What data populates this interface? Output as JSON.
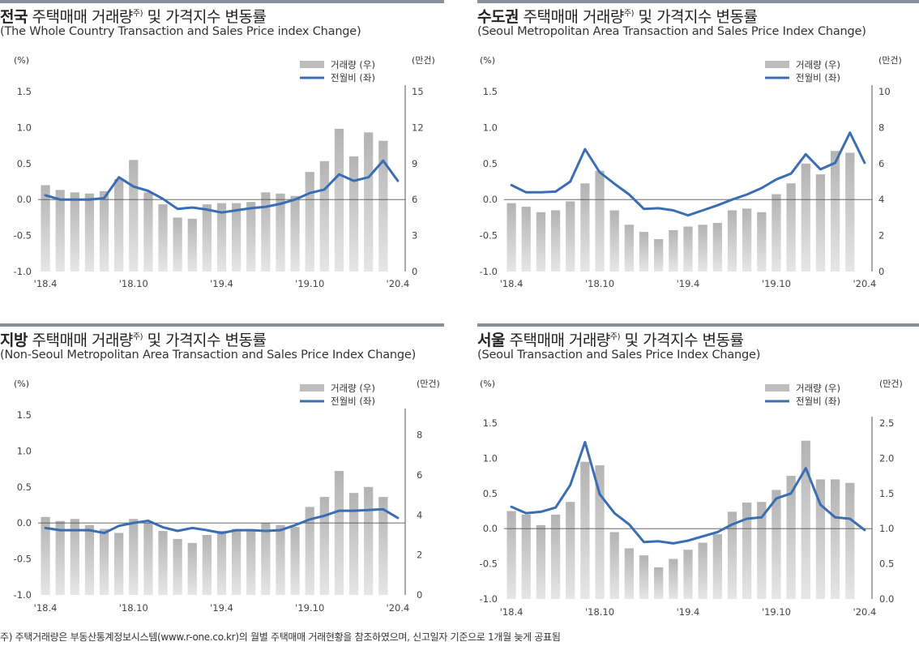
{
  "legend": {
    "bar_label": "거래량 (우)",
    "line_label": "전월비 (좌)"
  },
  "units": {
    "left": "(%)",
    "right": "(만건)"
  },
  "colors": {
    "bar": "#bdbdbd",
    "line": "#3a6db3",
    "zero": "#555555",
    "top_rule": "#8a8f99"
  },
  "footnote": "주) 주택거래량은 부동산통계정보시스템(www.r-one.co.kr)의 월별 주택매매 거래현황을 참조하였으며, 신고일자 기준으로 1개월 늦게 공표됨",
  "chart_data": [
    {
      "type": "bar+line",
      "title_bold": "전국",
      "title_rest": " 주택매매 거래량",
      "title_sup": "주)",
      "title_tail": " 및 가격지수 변동률",
      "subtitle": "(The Whole Country Transaction and Sales Price index Change)",
      "x": [
        "18.4",
        "18.5",
        "18.6",
        "18.7",
        "18.8",
        "18.9",
        "18.10",
        "18.11",
        "18.12",
        "19.1",
        "19.2",
        "19.3",
        "19.4",
        "19.5",
        "19.6",
        "19.7",
        "19.8",
        "19.9",
        "19.10",
        "19.11",
        "19.12",
        "20.1",
        "20.2",
        "20.3",
        "20.4"
      ],
      "x_tick_labels": [
        "'18.4",
        "'18.10",
        "'19.4",
        "'19.10",
        "'20.4"
      ],
      "left_ticks": [
        "1.5",
        "1.0",
        "0.5",
        "0.0",
        "-0.5",
        "-1.0"
      ],
      "right_ticks": [
        "15",
        "12",
        "9",
        "6",
        "3",
        "0"
      ],
      "ylim_left": [
        -1.0,
        1.5
      ],
      "ylim_right": [
        0,
        15
      ],
      "series": [
        {
          "name": "거래량 (우)",
          "kind": "bar",
          "axis": "right",
          "values": [
            7.2,
            6.8,
            6.6,
            6.5,
            6.7,
            7.7,
            9.3,
            6.6,
            5.6,
            4.5,
            4.4,
            5.6,
            5.7,
            5.7,
            5.8,
            6.6,
            6.5,
            6.3,
            8.3,
            9.2,
            11.9,
            9.6,
            11.6,
            10.9,
            null
          ]
        },
        {
          "name": "전월비 (좌)",
          "kind": "line",
          "axis": "left",
          "values": [
            0.06,
            0.0,
            0.0,
            0.0,
            0.02,
            0.31,
            0.18,
            0.12,
            0.01,
            -0.13,
            -0.11,
            -0.14,
            -0.18,
            -0.15,
            -0.12,
            -0.1,
            -0.06,
            0.0,
            0.09,
            0.14,
            0.35,
            0.26,
            0.31,
            0.54,
            0.26
          ]
        }
      ]
    },
    {
      "type": "bar+line",
      "title_bold": "수도권",
      "title_rest": " 주택매매 거래량",
      "title_sup": "주)",
      "title_tail": " 및 가격지수 변동률",
      "subtitle": "(Seoul Metropolitan Area Transaction and Sales Price Index Change)",
      "x": [
        "18.4",
        "18.5",
        "18.6",
        "18.7",
        "18.8",
        "18.9",
        "18.10",
        "18.11",
        "18.12",
        "19.1",
        "19.2",
        "19.3",
        "19.4",
        "19.5",
        "19.6",
        "19.7",
        "19.8",
        "19.9",
        "19.10",
        "19.11",
        "19.12",
        "20.1",
        "20.2",
        "20.3",
        "20.4"
      ],
      "x_tick_labels": [
        "'18.4",
        "'18.10",
        "'19.4",
        "'19.10",
        "'20.4"
      ],
      "left_ticks": [
        "1.5",
        "1.0",
        "0.5",
        "0.0",
        "-0.5",
        "-1.0"
      ],
      "right_ticks": [
        "10",
        "8",
        "6",
        "4",
        "2",
        "0"
      ],
      "ylim_left": [
        -1.0,
        1.5
      ],
      "ylim_right": [
        0,
        10
      ],
      "series": [
        {
          "name": "거래량 (우)",
          "kind": "bar",
          "axis": "right",
          "values": [
            3.8,
            3.6,
            3.3,
            3.4,
            3.9,
            4.9,
            5.6,
            3.4,
            2.6,
            2.2,
            1.8,
            2.3,
            2.5,
            2.6,
            2.7,
            3.4,
            3.5,
            3.3,
            4.3,
            4.9,
            6.0,
            5.4,
            6.7,
            6.6,
            null
          ]
        },
        {
          "name": "전월비 (좌)",
          "kind": "line",
          "axis": "left",
          "values": [
            0.2,
            0.1,
            0.1,
            0.11,
            0.25,
            0.7,
            0.38,
            0.22,
            0.07,
            -0.13,
            -0.12,
            -0.15,
            -0.22,
            -0.15,
            -0.08,
            0.0,
            0.07,
            0.16,
            0.28,
            0.36,
            0.63,
            0.42,
            0.51,
            0.93,
            0.51
          ]
        }
      ]
    },
    {
      "type": "bar+line",
      "title_bold": "지방",
      "title_rest": " 주택매매 거래량",
      "title_sup": "주)",
      "title_tail": " 및 가격지수 변동률",
      "subtitle": "(Non-Seoul Metropolitan Area Transaction and Sales Price Index Change)",
      "x": [
        "18.4",
        "18.5",
        "18.6",
        "18.7",
        "18.8",
        "18.9",
        "18.10",
        "18.11",
        "18.12",
        "19.1",
        "19.2",
        "19.3",
        "19.4",
        "19.5",
        "19.6",
        "19.7",
        "19.8",
        "19.9",
        "19.10",
        "19.11",
        "19.12",
        "20.1",
        "20.2",
        "20.3",
        "20.4"
      ],
      "x_tick_labels": [
        "'18.4",
        "'18.10",
        "'19.4",
        "'19.10",
        "'20.4"
      ],
      "left_ticks": [
        "1.5",
        "1.0",
        "0.5",
        "0.0",
        "-0.5",
        "-1.0"
      ],
      "right_ticks": [
        "8",
        "6",
        "4",
        "2",
        "0"
      ],
      "ylim_left": [
        -1.0,
        1.5
      ],
      "ylim_right": [
        0,
        9
      ],
      "series": [
        {
          "name": "거래량 (우)",
          "kind": "bar",
          "axis": "right",
          "values": [
            3.9,
            3.7,
            3.8,
            3.5,
            3.3,
            3.1,
            3.8,
            3.6,
            3.2,
            2.8,
            2.6,
            3.0,
            3.2,
            3.3,
            3.3,
            3.6,
            3.5,
            3.4,
            4.4,
            4.9,
            6.2,
            5.1,
            5.4,
            4.9,
            null
          ]
        },
        {
          "name": "전월비 (좌)",
          "kind": "line",
          "axis": "left",
          "values": [
            -0.07,
            -0.1,
            -0.1,
            -0.1,
            -0.14,
            -0.04,
            0.0,
            0.03,
            -0.06,
            -0.11,
            -0.07,
            -0.1,
            -0.14,
            -0.1,
            -0.1,
            -0.11,
            -0.1,
            -0.03,
            0.05,
            0.1,
            0.17,
            0.17,
            0.18,
            0.19,
            0.07
          ]
        }
      ]
    },
    {
      "type": "bar+line",
      "title_bold": "서울",
      "title_rest": " 주택매매 거래량",
      "title_sup": "주)",
      "title_tail": " 및 가격지수 변동률",
      "subtitle": "(Seoul Transaction and Sales Price Index Change)",
      "x": [
        "18.4",
        "18.5",
        "18.6",
        "18.7",
        "18.8",
        "18.9",
        "18.10",
        "18.11",
        "18.12",
        "19.1",
        "19.2",
        "19.3",
        "19.4",
        "19.5",
        "19.6",
        "19.7",
        "19.8",
        "19.9",
        "19.10",
        "19.11",
        "19.12",
        "20.1",
        "20.2",
        "20.3",
        "20.4"
      ],
      "x_tick_labels": [
        "'18.4",
        "'18.10",
        "'19.4",
        "'19.10",
        "'20.4"
      ],
      "left_ticks": [
        "1.5",
        "1.0",
        "0.5",
        "0.0",
        "-0.5",
        "-1.0"
      ],
      "right_ticks": [
        "2.5",
        "2.0",
        "1.5",
        "1.0",
        "0.5",
        "0.0"
      ],
      "ylim_left": [
        -1.0,
        1.5
      ],
      "ylim_right": [
        0,
        2.5
      ],
      "series": [
        {
          "name": "거래량 (우)",
          "kind": "bar",
          "axis": "right",
          "values": [
            1.25,
            1.2,
            1.05,
            1.2,
            1.38,
            1.95,
            1.9,
            0.95,
            0.72,
            0.62,
            0.45,
            0.57,
            0.7,
            0.8,
            0.92,
            1.24,
            1.37,
            1.38,
            1.55,
            1.75,
            2.25,
            1.7,
            1.7,
            1.65,
            null
          ]
        },
        {
          "name": "전월비 (좌)",
          "kind": "line",
          "axis": "left",
          "values": [
            0.31,
            0.22,
            0.24,
            0.3,
            0.62,
            1.23,
            0.49,
            0.22,
            0.06,
            -0.19,
            -0.18,
            -0.21,
            -0.17,
            -0.11,
            -0.05,
            0.06,
            0.14,
            0.16,
            0.43,
            0.5,
            0.86,
            0.34,
            0.16,
            0.14,
            -0.02
          ]
        }
      ]
    }
  ]
}
